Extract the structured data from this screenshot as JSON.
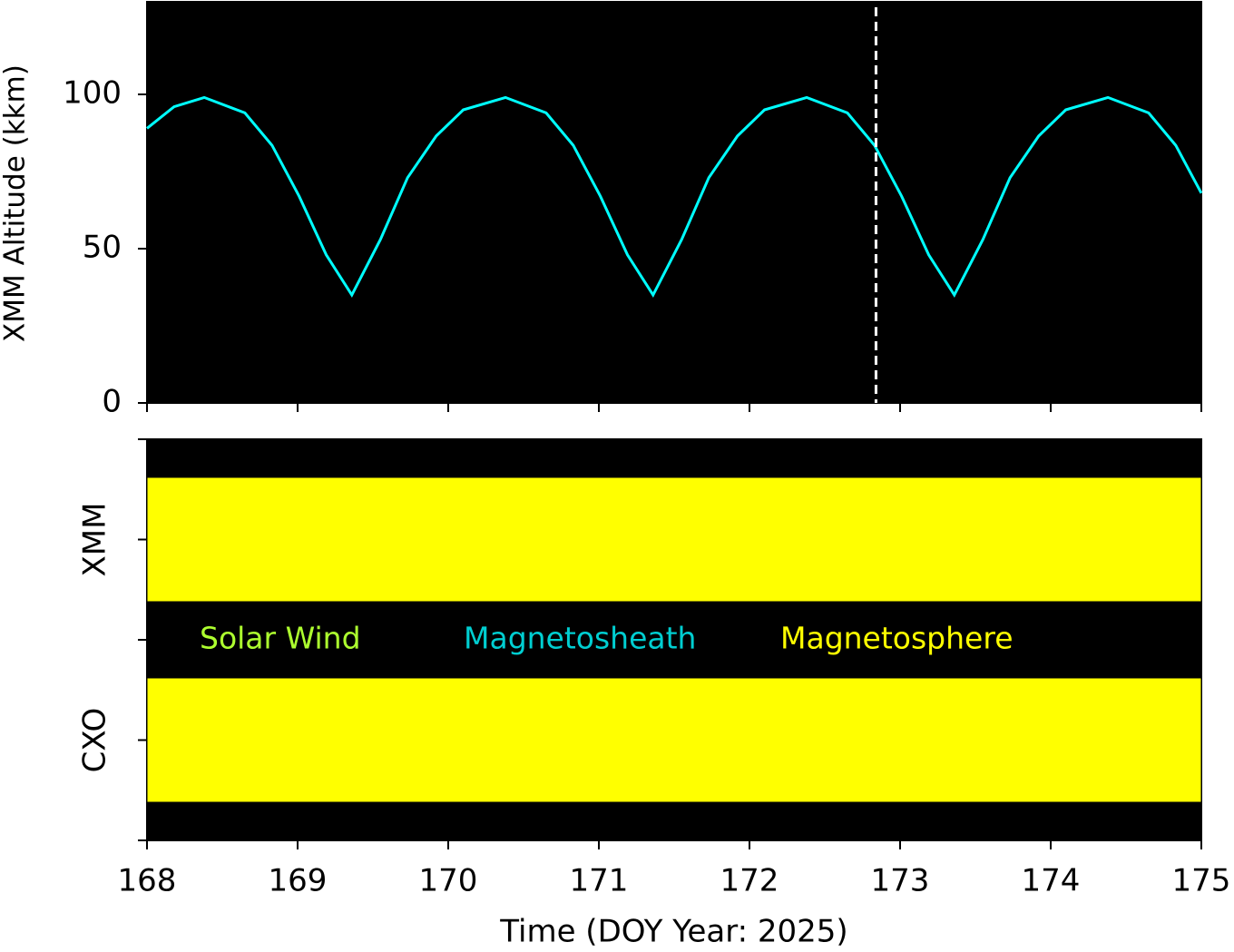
{
  "chart_data": [
    {
      "type": "line",
      "y_label": "XMM Altitude (kkm)",
      "xlim": [
        168,
        175
      ],
      "xticks": [
        168,
        169,
        170,
        171,
        172,
        173,
        174,
        175
      ],
      "ylim": [
        0,
        130
      ],
      "yticks": [
        0,
        50,
        100
      ],
      "vline_x": 172.84,
      "vline_color": "#ffffff",
      "background": "#000000",
      "series": [
        {
          "name": "XMM",
          "color": "#00ffff",
          "x": [
            168,
            168.18,
            168.38,
            168.65,
            168.83,
            169.01,
            169.19,
            169.36,
            169.55,
            169.73,
            169.92,
            170.1,
            170.38,
            170.65,
            170.83,
            171.01,
            171.19,
            171.36,
            171.55,
            171.73,
            171.92,
            172.1,
            172.38,
            172.65,
            172.83,
            173.01,
            173.19,
            173.36,
            173.55,
            173.73,
            173.92,
            174.1,
            174.38,
            174.65,
            174.83,
            175
          ],
          "values": [
            89,
            96,
            99,
            94,
            83.5,
            67,
            48,
            35,
            53,
            73,
            86.5,
            95,
            99,
            94,
            83.5,
            67,
            48,
            35,
            53,
            73,
            86.5,
            95,
            99,
            94,
            83.5,
            67,
            48,
            35,
            53,
            73,
            86.5,
            95,
            99,
            94,
            83.5,
            68
          ]
        }
      ]
    },
    {
      "type": "timeline",
      "x_label": "Time (DOY Year: 2025)",
      "xlim": [
        168,
        175
      ],
      "xticks": [
        168,
        169,
        170,
        171,
        172,
        173,
        174,
        175
      ],
      "ylim": [
        0,
        4
      ],
      "yticks": [
        0,
        1,
        2,
        3,
        4
      ],
      "categories": [
        "CXO",
        "XMM"
      ],
      "category_positions": [
        1,
        3
      ],
      "background": "#000000",
      "regions": [
        {
          "name": "Solar Wind",
          "color": "#adff2f"
        },
        {
          "name": "Magnetosheath",
          "color": "#00ced1"
        },
        {
          "name": "Magnetosphere",
          "color": "#ffff00"
        }
      ],
      "segments": [
        {
          "row": 0,
          "region": 2,
          "start": 168,
          "end": 175
        },
        {
          "row": 1,
          "region": 2,
          "start": 168,
          "end": 175
        }
      ]
    }
  ]
}
